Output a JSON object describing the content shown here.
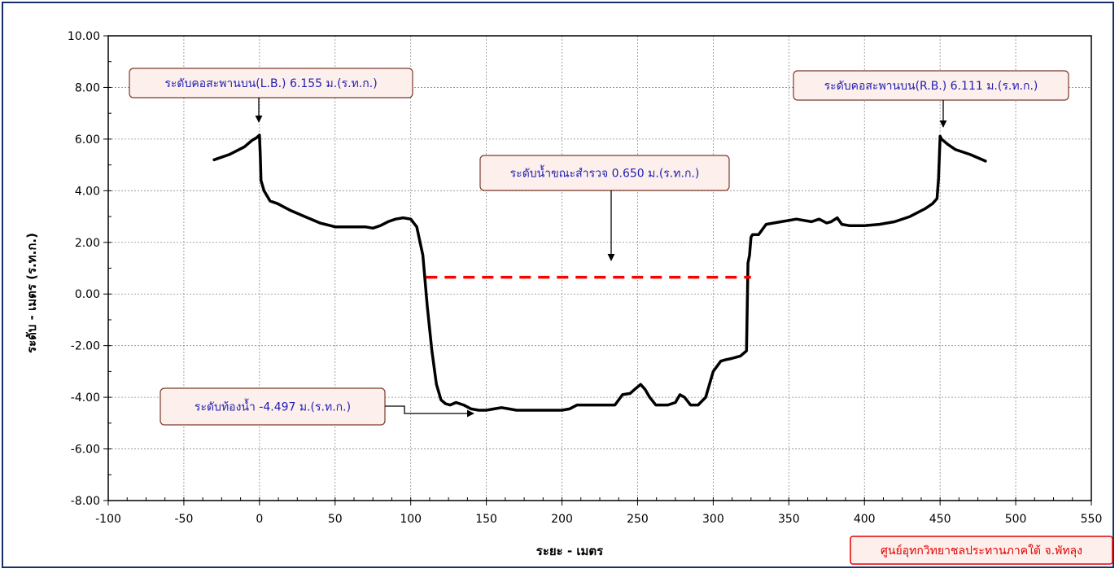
{
  "chart_data": {
    "type": "line",
    "title": "",
    "xlabel": "ระยะ - เมตร",
    "ylabel": "ระดับ - เมตร (ร.ท.ก.)",
    "xlim": [
      -100,
      550
    ],
    "ylim": [
      -8,
      10
    ],
    "x_ticks": [
      "-100",
      "-50",
      "0",
      "50",
      "100",
      "150",
      "200",
      "250",
      "300",
      "350",
      "400",
      "450",
      "500",
      "550"
    ],
    "y_ticks": [
      "10.00",
      "8.00",
      "6.00",
      "4.00",
      "2.00",
      "0.00",
      "-2.00",
      "-4.00",
      "-6.00",
      "-8.00"
    ],
    "grid": true,
    "series": [
      {
        "color": "#000000",
        "style": "solid",
        "x": [
          -30,
          -20,
          -10,
          -5,
          -2,
          0,
          0.5,
          1,
          3,
          7,
          12,
          20,
          30,
          40,
          50,
          60,
          70,
          75,
          80,
          85,
          90,
          95,
          100,
          104,
          108,
          111,
          114,
          117,
          120,
          123,
          126,
          130,
          135,
          140,
          145,
          150,
          155,
          160,
          165,
          170,
          180,
          190,
          200,
          205,
          210,
          220,
          230,
          235,
          240,
          245,
          248,
          252,
          255,
          258,
          262,
          265,
          270,
          275,
          278,
          281,
          285,
          290,
          295,
          300,
          305,
          308,
          312,
          318,
          322,
          323,
          324,
          325,
          326,
          330,
          335,
          340,
          345,
          350,
          355,
          360,
          365,
          370,
          375,
          378,
          382,
          385,
          390,
          400,
          410,
          420,
          430,
          440,
          445,
          448,
          449,
          450,
          451,
          455,
          460,
          470,
          480
        ],
        "y": [
          5.2,
          5.4,
          5.7,
          5.95,
          6.05,
          6.155,
          5.4,
          4.4,
          4.0,
          3.6,
          3.5,
          3.25,
          3.0,
          2.75,
          2.6,
          2.6,
          2.6,
          2.55,
          2.65,
          2.8,
          2.9,
          2.95,
          2.9,
          2.6,
          1.5,
          -0.5,
          -2.2,
          -3.5,
          -4.1,
          -4.25,
          -4.3,
          -4.2,
          -4.3,
          -4.45,
          -4.5,
          -4.5,
          -4.45,
          -4.4,
          -4.45,
          -4.5,
          -4.5,
          -4.5,
          -4.5,
          -4.45,
          -4.3,
          -4.3,
          -4.3,
          -4.3,
          -3.9,
          -3.85,
          -3.7,
          -3.5,
          -3.7,
          -4.0,
          -4.3,
          -4.3,
          -4.3,
          -4.2,
          -3.9,
          -4.0,
          -4.3,
          -4.3,
          -4.0,
          -3.0,
          -2.6,
          -2.55,
          -2.5,
          -2.4,
          -2.2,
          1.2,
          1.5,
          2.2,
          2.3,
          2.3,
          2.7,
          2.75,
          2.8,
          2.85,
          2.9,
          2.85,
          2.8,
          2.9,
          2.75,
          2.8,
          2.95,
          2.7,
          2.65,
          2.65,
          2.7,
          2.8,
          3.0,
          3.3,
          3.5,
          3.7,
          4.5,
          6.111,
          6.0,
          5.8,
          5.6,
          5.4,
          5.15
        ]
      },
      {
        "color": "#ff0000",
        "style": "dashed",
        "x": [
          110,
          325
        ],
        "y": [
          0.65,
          0.65
        ]
      }
    ],
    "annotations": [
      {
        "text": "ระดับคอสะพานบน(L.B.) 6.155 ม.(ร.ท.ก.)",
        "x": 0,
        "y": 6.155
      },
      {
        "text": "ระดับคอสะพานบน(R.B.) 6.111 ม.(ร.ท.ก.)",
        "x": 450,
        "y": 6.111
      },
      {
        "text": "ระดับน้ำขณะสำรวจ 0.650 ม.(ร.ท.ก.)",
        "x": 232,
        "y": 1.2
      },
      {
        "text": "ระดับท้องน้ำ -4.497 ม.(ร.ท.ก.)",
        "x": 143,
        "y": -4.497
      }
    ]
  },
  "credit": "ศูนย์อุทกวิทยาชลประทานภาคใต้ จ.พัทลุง",
  "colors": {
    "frame": "#17306b",
    "annotation_fill": "#fdefeb",
    "annotation_border": "#7b3b2c",
    "annotation_text": "#1f1fb4",
    "credit_text": "#e00000"
  }
}
